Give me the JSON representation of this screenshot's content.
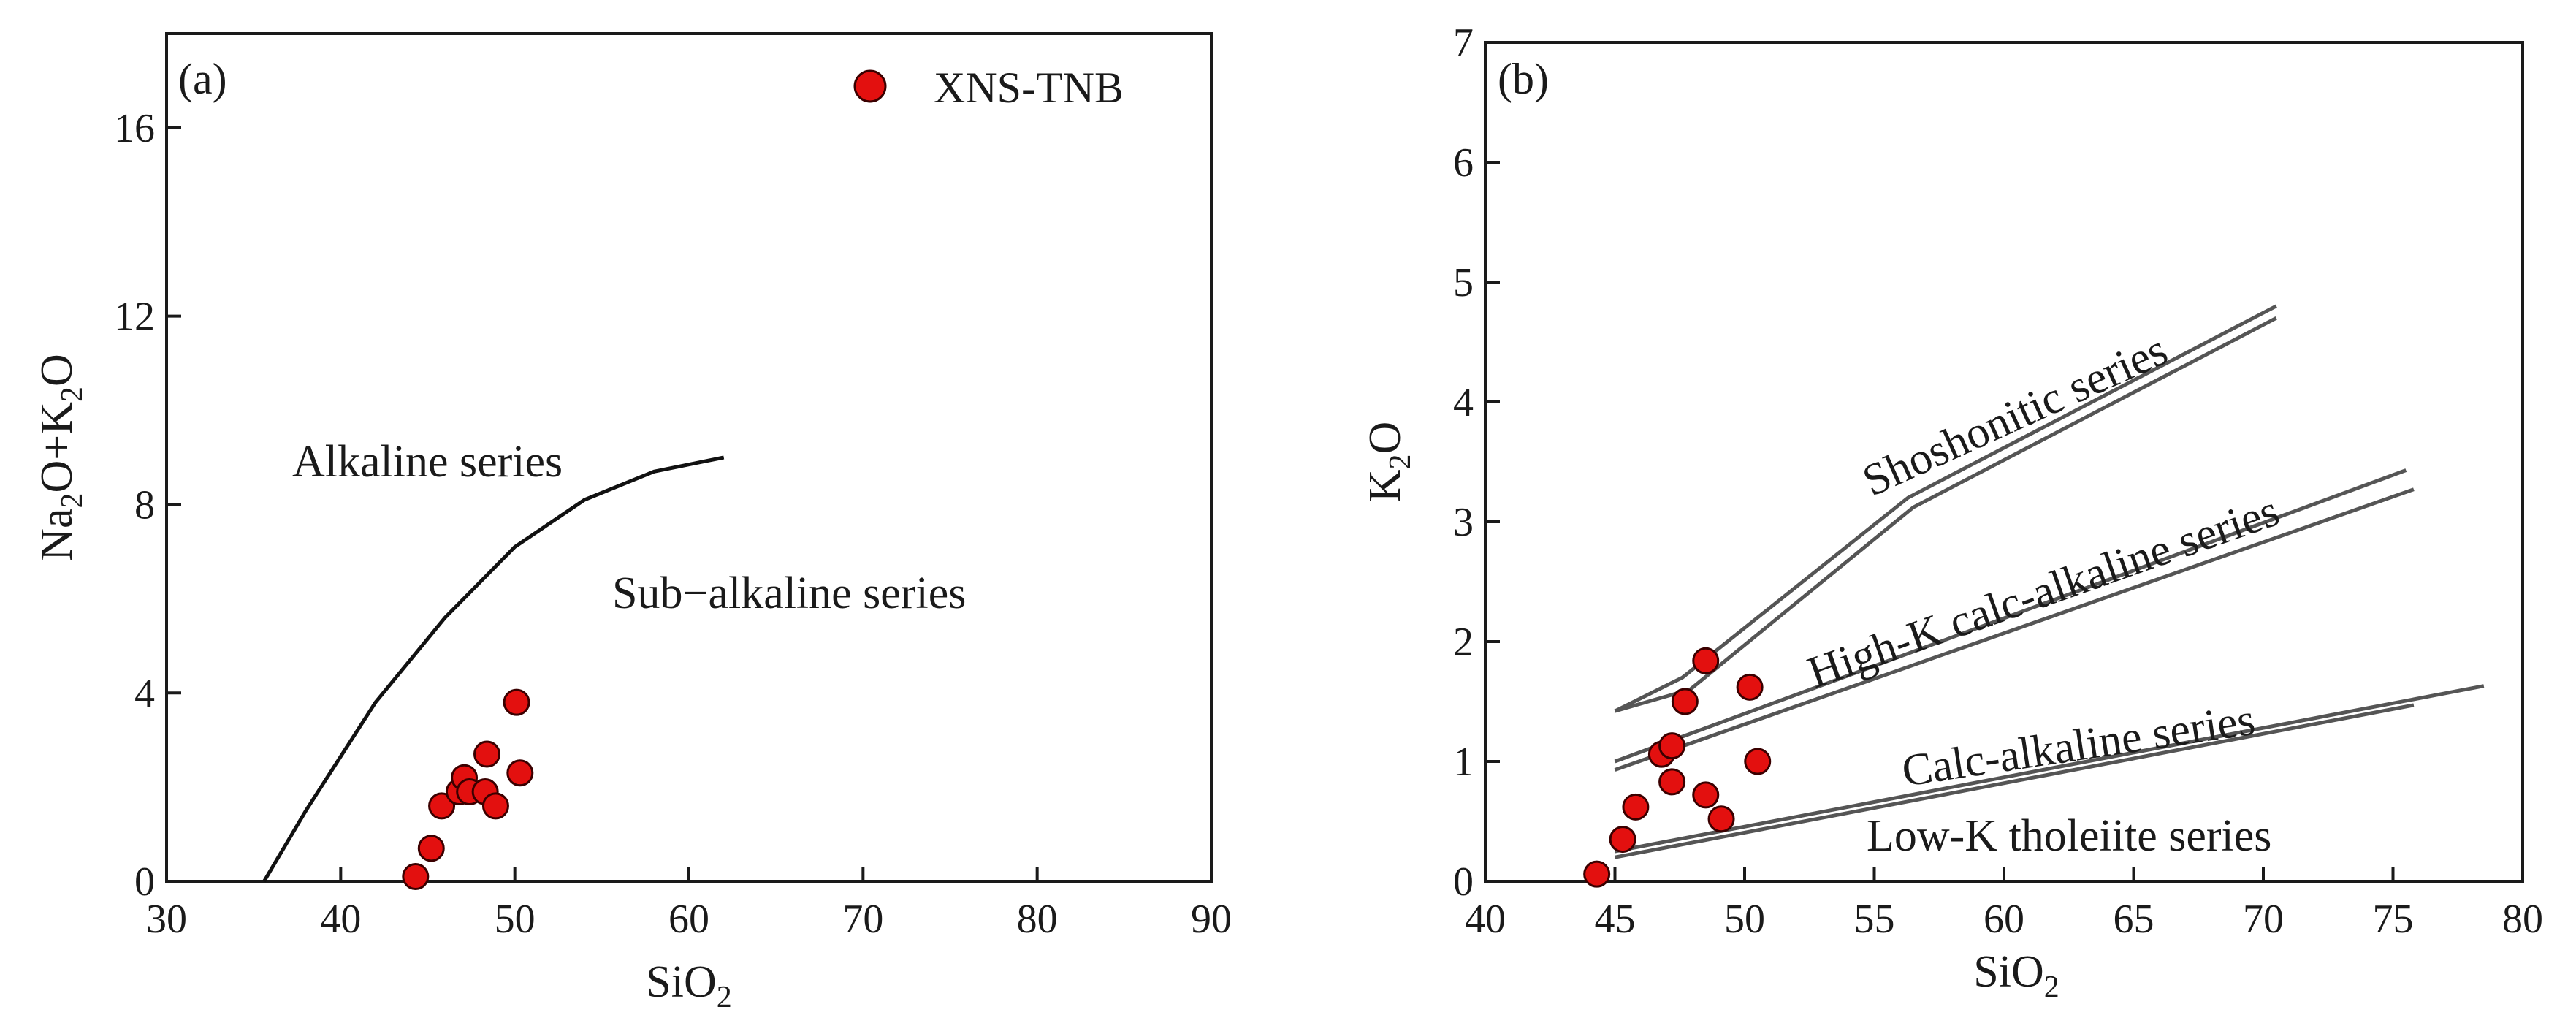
{
  "marker_color": "#e3100f",
  "chart_data": [
    {
      "type": "scatter",
      "panel_label": "(a)",
      "xlabel": "SiO",
      "xlabel_sub": "2",
      "ylabel_parts": [
        "Na",
        "2",
        "O+K",
        "2",
        "O"
      ],
      "xlim": [
        30,
        90
      ],
      "ylim": [
        0,
        18
      ],
      "xticks": [
        30,
        40,
        50,
        60,
        70,
        80,
        90
      ],
      "yticks": [
        0,
        4,
        8,
        12,
        16
      ],
      "legend": "XNS-TNB",
      "region_labels": {
        "alkaline": "Alkaline series",
        "subalkaline": "Sub−alkaline  series"
      },
      "boundary": [
        [
          35.6,
          0
        ],
        [
          38,
          1.5
        ],
        [
          42,
          3.8
        ],
        [
          46,
          5.6
        ],
        [
          50,
          7.1
        ],
        [
          54,
          8.1
        ],
        [
          58,
          8.7
        ],
        [
          62,
          9.0
        ]
      ],
      "series": [
        {
          "name": "XNS-TNB",
          "points": [
            [
              44.3,
              0.1
            ],
            [
              45.2,
              0.7
            ],
            [
              45.8,
              1.6
            ],
            [
              46.8,
              1.9
            ],
            [
              47.1,
              2.2
            ],
            [
              47.4,
              1.9
            ],
            [
              48.4,
              2.7
            ],
            [
              48.3,
              1.9
            ],
            [
              48.9,
              1.6
            ],
            [
              50.1,
              3.8
            ],
            [
              50.3,
              2.3
            ]
          ]
        }
      ]
    },
    {
      "type": "scatter",
      "panel_label": "(b)",
      "xlabel": "SiO",
      "xlabel_sub": "2",
      "ylabel_parts": [
        "K",
        "2",
        "O"
      ],
      "xlim": [
        40,
        80
      ],
      "ylim": [
        0,
        7
      ],
      "xticks": [
        40,
        45,
        50,
        55,
        60,
        65,
        70,
        75,
        80
      ],
      "yticks": [
        0,
        1,
        2,
        3,
        4,
        5,
        6,
        7
      ],
      "series_labels": {
        "shoshonitic": "Shoshonitic series",
        "highk": "High-K calc-alkaline series",
        "calc": "Calc-alkaline series",
        "lowk": "Low-K tholeiite series"
      },
      "boundaries": [
        {
          "name": "shoshonitic-upper",
          "points": [
            [
              45,
              1.42
            ],
            [
              47.6,
              1.7
            ],
            [
              56.3,
              3.2
            ],
            [
              70.5,
              4.8
            ]
          ]
        },
        {
          "name": "shoshonitic-lower",
          "points": [
            [
              45,
              1.42
            ],
            [
              47.9,
              1.6
            ],
            [
              56.5,
              3.12
            ],
            [
              70.5,
              4.7
            ]
          ]
        },
        {
          "name": "highk-upper",
          "points": [
            [
              45,
              1.0
            ],
            [
              75.5,
              3.43
            ]
          ]
        },
        {
          "name": "highk-lower",
          "points": [
            [
              45,
              0.93
            ],
            [
              75.8,
              3.27
            ]
          ]
        },
        {
          "name": "calc-upper",
          "points": [
            [
              45,
              0.25
            ],
            [
              78.5,
              1.63
            ]
          ]
        },
        {
          "name": "calc-lower",
          "points": [
            [
              45,
              0.2
            ],
            [
              75.8,
              1.47
            ]
          ]
        }
      ],
      "series": [
        {
          "name": "XNS-TNB",
          "points": [
            [
              44.3,
              0.06
            ],
            [
              45.3,
              0.35
            ],
            [
              45.8,
              0.62
            ],
            [
              46.8,
              1.06
            ],
            [
              47.2,
              1.13
            ],
            [
              47.2,
              0.83
            ],
            [
              47.7,
              1.5
            ],
            [
              48.5,
              1.84
            ],
            [
              48.5,
              0.72
            ],
            [
              49.1,
              0.52
            ],
            [
              50.2,
              1.62
            ],
            [
              50.5,
              1.0
            ]
          ]
        }
      ]
    }
  ]
}
